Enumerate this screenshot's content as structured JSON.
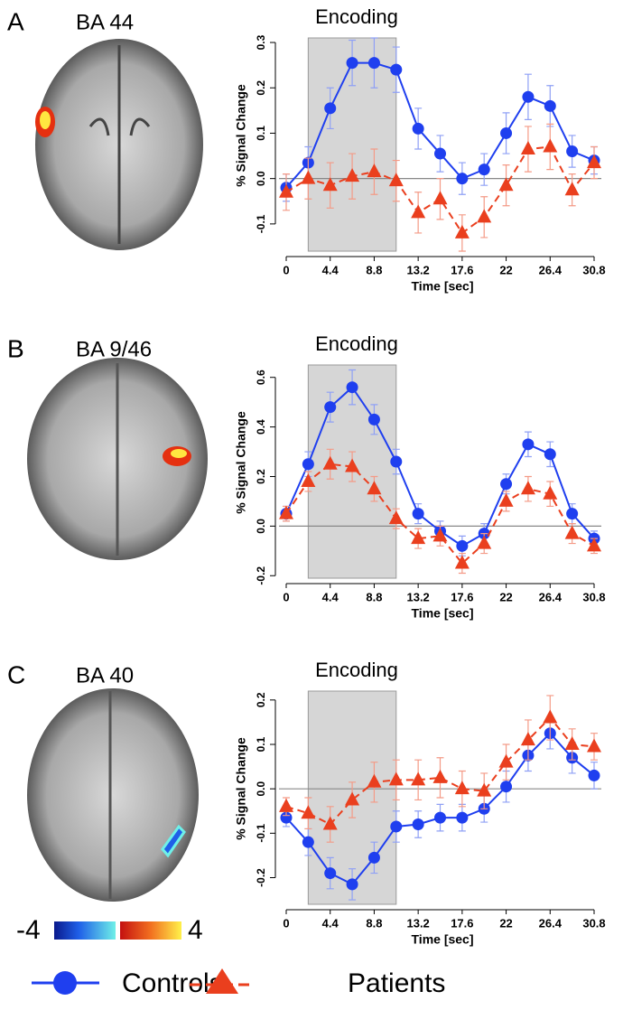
{
  "panels": [
    {
      "letter": "A",
      "region": "BA 44"
    },
    {
      "letter": "B",
      "region": "BA 9/46"
    },
    {
      "letter": "C",
      "region": "BA 40"
    }
  ],
  "colorbar": {
    "min": -4,
    "max": 4
  },
  "chart_data": [
    {
      "type": "line",
      "title": "Encoding",
      "y_label": "% Signal Change",
      "x_label": "Time [sec]",
      "x": [
        0,
        2.2,
        4.4,
        6.6,
        8.8,
        11,
        13.2,
        15.4,
        17.6,
        19.8,
        22,
        24.2,
        26.4,
        28.6,
        30.8
      ],
      "xlim": [
        0,
        30.8
      ],
      "xticks": [
        0,
        4.4,
        8.8,
        13.2,
        17.6,
        22,
        26.4,
        30.8
      ],
      "ylim": [
        -0.16,
        0.31
      ],
      "yticks": [
        -0.1,
        {
          "value": 0,
          "label": "0.0"
        },
        0.1,
        0.2,
        0.3
      ],
      "shaded_span": [
        2.2,
        11
      ],
      "series": [
        {
          "name": "Controls",
          "color": "#1f3fef",
          "marker": "circle",
          "dashed": false,
          "values": [
            -0.02,
            0.035,
            0.155,
            0.255,
            0.255,
            0.24,
            0.11,
            0.055,
            0.0,
            0.02,
            0.1,
            0.18,
            0.16,
            0.06,
            0.04
          ],
          "errors": [
            0.03,
            0.035,
            0.045,
            0.05,
            0.055,
            0.05,
            0.045,
            0.04,
            0.035,
            0.035,
            0.045,
            0.05,
            0.045,
            0.035,
            0.03
          ]
        },
        {
          "name": "Patients",
          "color": "#ea3f1e",
          "marker": "triangle",
          "dashed": true,
          "values": [
            -0.03,
            0.0,
            -0.015,
            0.005,
            0.015,
            -0.005,
            -0.075,
            -0.045,
            -0.12,
            -0.085,
            -0.015,
            0.065,
            0.07,
            -0.025,
            0.035
          ],
          "errors": [
            0.04,
            0.045,
            0.05,
            0.05,
            0.05,
            0.045,
            0.045,
            0.045,
            0.04,
            0.045,
            0.045,
            0.05,
            0.05,
            0.035,
            0.035
          ]
        }
      ]
    },
    {
      "type": "line",
      "title": "Encoding",
      "y_label": "% Signal Change",
      "x_label": "Time [sec]",
      "x": [
        0,
        2.2,
        4.4,
        6.6,
        8.8,
        11,
        13.2,
        15.4,
        17.6,
        19.8,
        22,
        24.2,
        26.4,
        28.6,
        30.8
      ],
      "xlim": [
        0,
        30.8
      ],
      "xticks": [
        0,
        4.4,
        8.8,
        13.2,
        17.6,
        22,
        26.4,
        30.8
      ],
      "ylim": [
        -0.21,
        0.65
      ],
      "yticks": [
        -0.2,
        {
          "value": 0,
          "label": "0.0"
        },
        0.2,
        0.4,
        0.6
      ],
      "shaded_span": [
        2.2,
        11
      ],
      "series": [
        {
          "name": "Controls",
          "color": "#1f3fef",
          "marker": "circle",
          "dashed": false,
          "values": [
            0.05,
            0.25,
            0.48,
            0.56,
            0.43,
            0.26,
            0.05,
            -0.02,
            -0.08,
            -0.03,
            0.17,
            0.33,
            0.29,
            0.05,
            -0.05
          ],
          "errors": [
            0.03,
            0.05,
            0.06,
            0.07,
            0.06,
            0.05,
            0.04,
            0.04,
            0.04,
            0.04,
            0.04,
            0.05,
            0.05,
            0.04,
            0.03
          ]
        },
        {
          "name": "Patients",
          "color": "#ea3f1e",
          "marker": "triangle",
          "dashed": true,
          "values": [
            0.05,
            0.18,
            0.25,
            0.24,
            0.15,
            0.03,
            -0.05,
            -0.04,
            -0.15,
            -0.07,
            0.1,
            0.15,
            0.13,
            -0.03,
            -0.08
          ],
          "errors": [
            0.03,
            0.04,
            0.06,
            0.06,
            0.05,
            0.04,
            0.04,
            0.04,
            0.04,
            0.04,
            0.04,
            0.05,
            0.05,
            0.04,
            0.03
          ]
        }
      ]
    },
    {
      "type": "line",
      "title": "Encoding",
      "y_label": "% Signal Change",
      "x_label": "Time [sec]",
      "x": [
        0,
        2.2,
        4.4,
        6.6,
        8.8,
        11,
        13.2,
        15.4,
        17.6,
        19.8,
        22,
        24.2,
        26.4,
        28.6,
        30.8
      ],
      "xlim": [
        0,
        30.8
      ],
      "xticks": [
        0,
        4.4,
        8.8,
        13.2,
        17.6,
        22,
        26.4,
        30.8
      ],
      "ylim": [
        -0.26,
        0.22
      ],
      "yticks": [
        -0.2,
        -0.1,
        {
          "value": 0,
          "label": "0.0"
        },
        0.1,
        0.2
      ],
      "shaded_span": [
        2.2,
        11
      ],
      "series": [
        {
          "name": "Controls",
          "color": "#1f3fef",
          "marker": "circle",
          "dashed": false,
          "values": [
            -0.065,
            -0.12,
            -0.19,
            -0.215,
            -0.155,
            -0.085,
            -0.08,
            -0.065,
            -0.065,
            -0.045,
            0.005,
            0.075,
            0.125,
            0.07,
            0.03
          ],
          "errors": [
            0.02,
            0.03,
            0.035,
            0.035,
            0.035,
            0.035,
            0.03,
            0.03,
            0.03,
            0.03,
            0.035,
            0.035,
            0.035,
            0.035,
            0.03
          ]
        },
        {
          "name": "Patients",
          "color": "#ea3f1e",
          "marker": "triangle",
          "dashed": true,
          "values": [
            -0.04,
            -0.055,
            -0.08,
            -0.025,
            0.015,
            0.02,
            0.02,
            0.025,
            0.0,
            -0.005,
            0.06,
            0.11,
            0.16,
            0.1,
            0.095
          ],
          "errors": [
            0.02,
            0.035,
            0.04,
            0.04,
            0.045,
            0.045,
            0.045,
            0.045,
            0.04,
            0.04,
            0.04,
            0.045,
            0.05,
            0.035,
            0.03
          ]
        }
      ]
    }
  ]
}
